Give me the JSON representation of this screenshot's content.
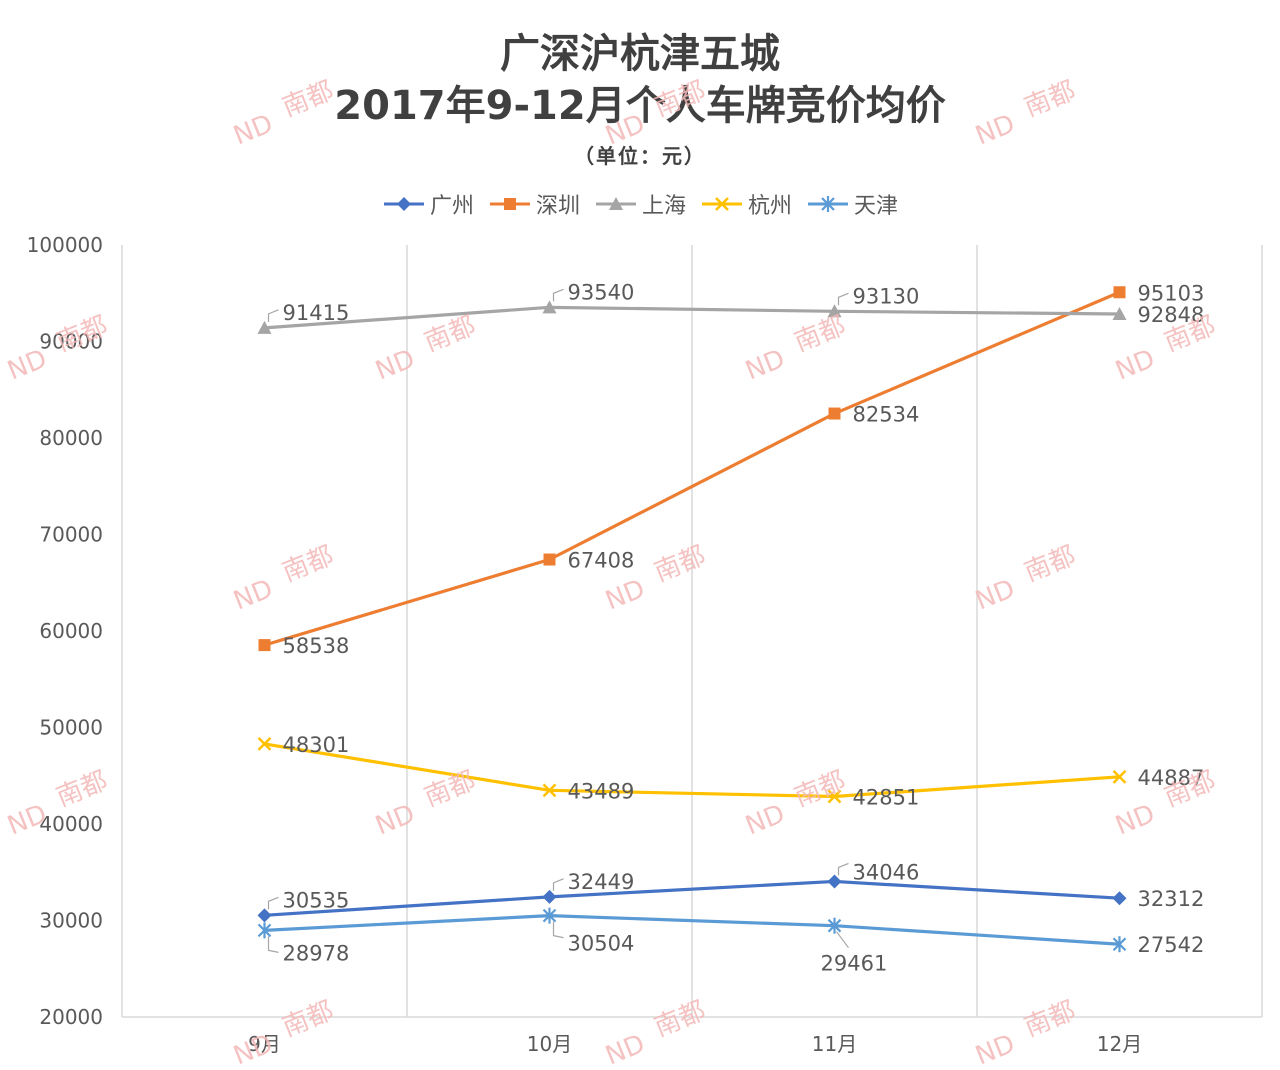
{
  "chart_data": {
    "type": "line",
    "title": [
      "广深沪杭津五城",
      "2017年9-12月个人车牌竞价均价"
    ],
    "subtitle": "（单位：元）",
    "categories": [
      "9月",
      "10月",
      "11月",
      "12月"
    ],
    "ylim": [
      20000,
      100000
    ],
    "yticks": [
      "100000",
      "90000",
      "80000",
      "70000",
      "60000",
      "50000",
      "40000",
      "30000",
      "20000"
    ],
    "legend_position": "top",
    "series": [
      {
        "name": "广州",
        "color": "#4472c4",
        "marker": "diamond",
        "values": [
          30535,
          32449,
          34046,
          32312
        ]
      },
      {
        "name": "深圳",
        "color": "#ed7d31",
        "marker": "square",
        "values": [
          58538,
          67408,
          82534,
          95103
        ]
      },
      {
        "name": "上海",
        "color": "#a5a5a5",
        "marker": "triangle",
        "values": [
          91415,
          93540,
          93130,
          92848
        ]
      },
      {
        "name": "杭州",
        "color": "#ffc000",
        "marker": "x",
        "values": [
          48301,
          43489,
          42851,
          44887
        ]
      },
      {
        "name": "天津",
        "color": "#5b9bd5",
        "marker": "star",
        "values": [
          28978,
          30504,
          29461,
          27542
        ]
      }
    ]
  },
  "watermark": {
    "latin": "ND",
    "text": "南都",
    "color": "#f4b8b8"
  }
}
